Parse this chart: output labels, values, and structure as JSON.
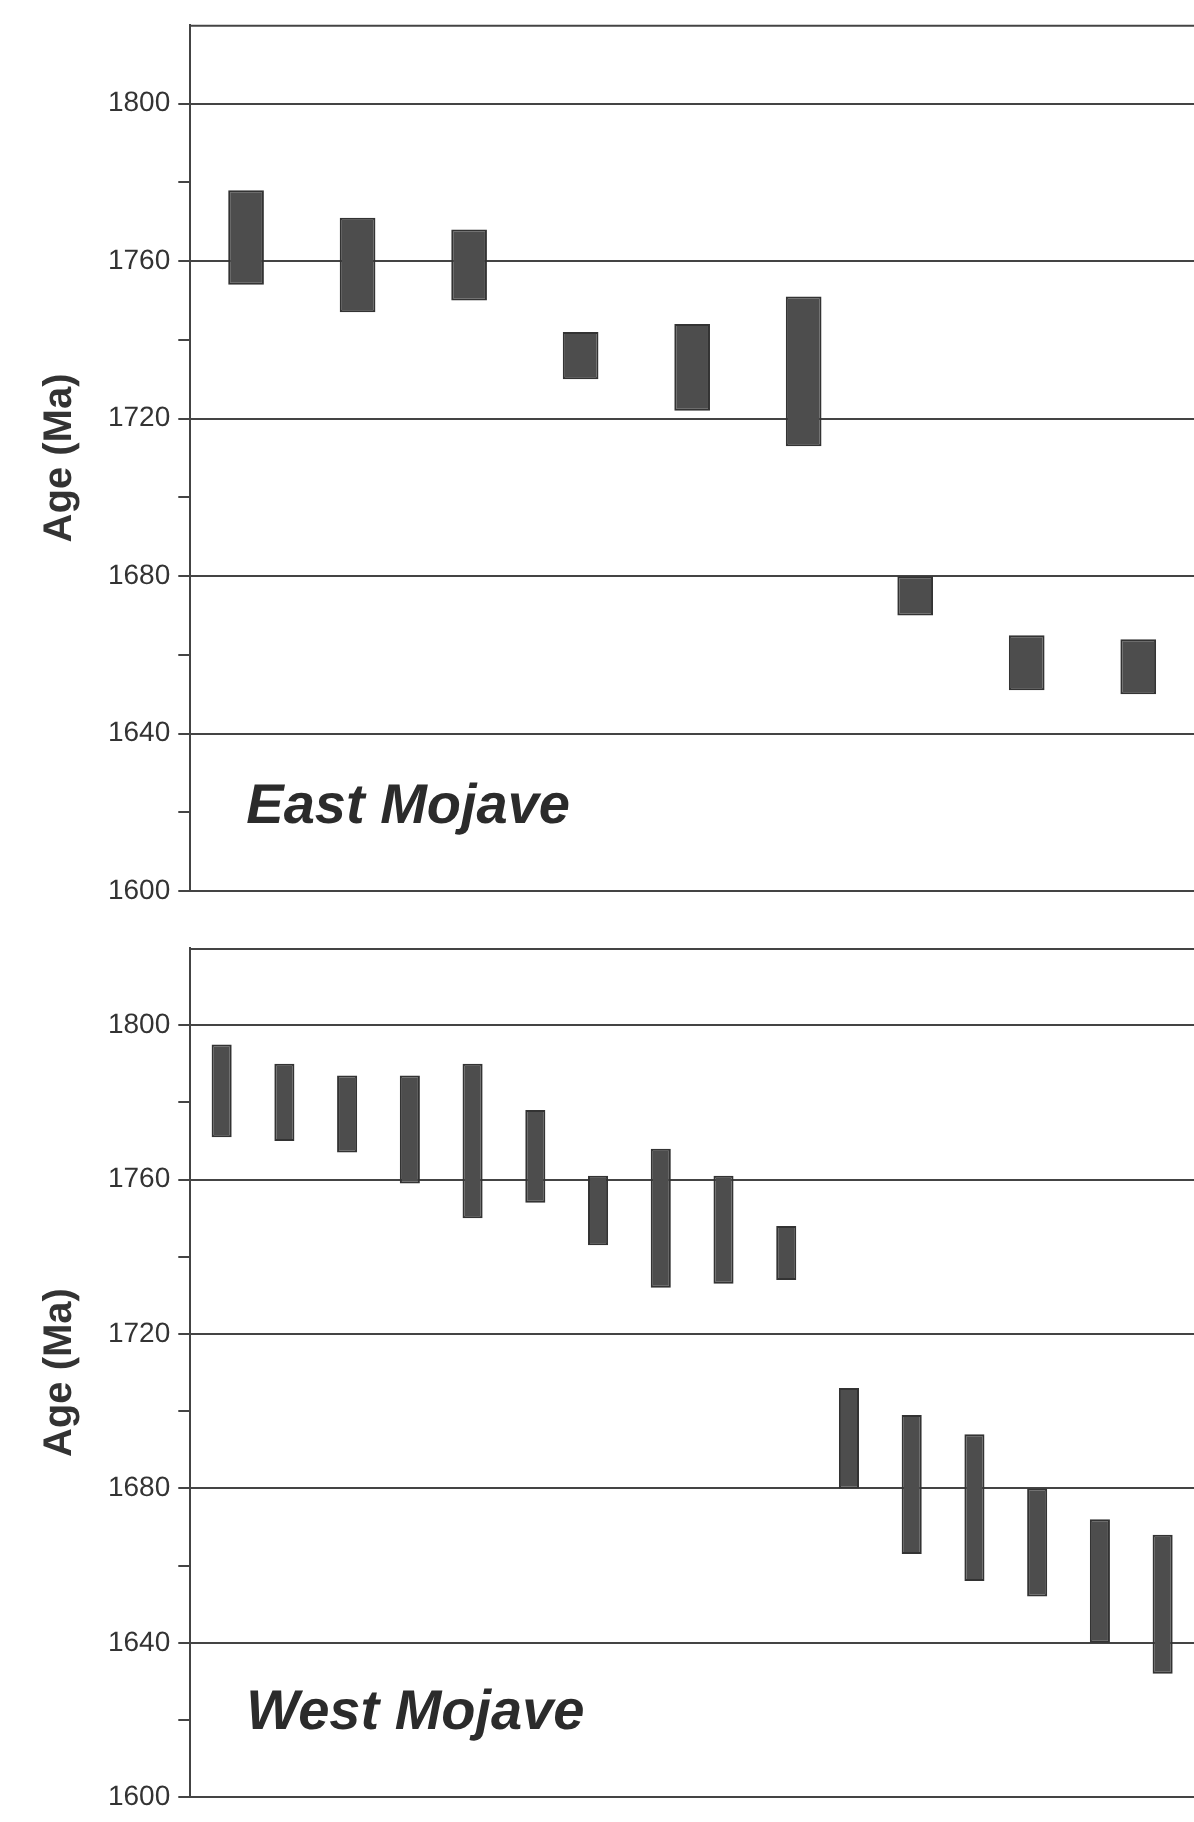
{
  "chart_data": [
    {
      "type": "bar",
      "ylabel": "Age (Ma)",
      "annotations": [
        "East Mojave"
      ],
      "categories": [
        null,
        null,
        null,
        null,
        null,
        null,
        null,
        null,
        null
      ],
      "base": [
        1754,
        1747,
        1750,
        1730,
        1722,
        1713,
        1670,
        1651,
        1650
      ],
      "values": [
        24,
        24,
        18,
        12,
        22,
        38,
        10,
        14,
        14
      ],
      "color": "#4d4d4d",
      "ylim": [
        1600,
        1820
      ],
      "yticks": [
        1600,
        {
          "value": 1620,
          "label": null
        },
        1640,
        {
          "value": 1660,
          "label": null
        },
        1680,
        {
          "value": 1700,
          "label": null
        },
        1720,
        {
          "value": 1740,
          "label": null
        },
        1760,
        {
          "value": 1780,
          "label": null
        },
        1800
      ],
      "grid": "y",
      "tick_labels": "y",
      "legend": false
    },
    {
      "type": "bar",
      "ylabel": "Age (Ma)",
      "annotations": [
        "West Mojave"
      ],
      "categories": [
        null,
        null,
        null,
        null,
        null,
        null,
        null,
        null,
        null,
        null,
        null,
        null,
        null,
        null,
        null,
        null
      ],
      "base": [
        1771,
        1770,
        1767,
        1759,
        1750,
        1754,
        1743,
        1732,
        1733,
        1734,
        1680,
        1663,
        1656,
        1652,
        1640,
        1632
      ],
      "values": [
        24,
        20,
        20,
        28,
        40,
        24,
        18,
        36,
        28,
        14,
        26,
        36,
        38,
        28,
        32,
        36
      ],
      "color": "#4d4d4d",
      "ylim": [
        1600,
        1820
      ],
      "yticks": [
        1600,
        {
          "value": 1620,
          "label": null
        },
        1640,
        {
          "value": 1660,
          "label": null
        },
        1680,
        {
          "value": 1700,
          "label": null
        },
        1720,
        {
          "value": 1740,
          "label": null
        },
        1760,
        {
          "value": 1780,
          "label": null
        },
        1800
      ],
      "grid": "y",
      "tick_labels": "y",
      "legend": false
    }
  ]
}
